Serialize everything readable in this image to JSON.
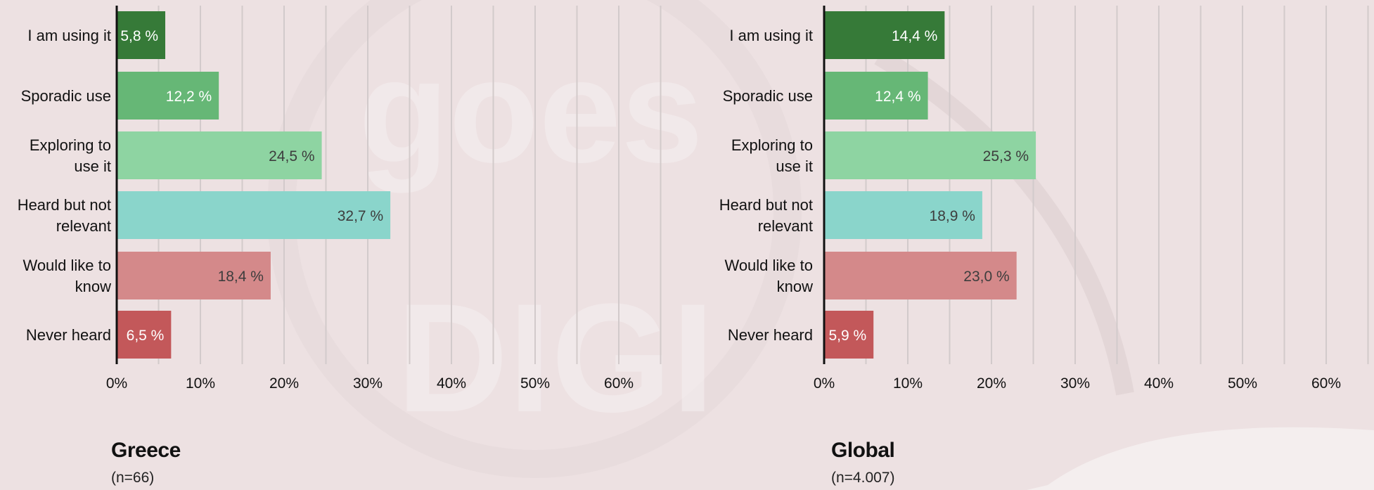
{
  "colors": {
    "background": "#ede1e2",
    "gridline": "#d2cacb",
    "axis": "#111111",
    "watermark": "#f6f1f1",
    "category_colors": [
      "#367a38",
      "#66b776",
      "#8ed4a2",
      "#8ad5cb",
      "#d4898a",
      "#c3585a"
    ],
    "label_colors": [
      "#ffffff",
      "#ffffff",
      "#3d3d3d",
      "#3d3d3d",
      "#3d3d3d",
      "#ffffff"
    ]
  },
  "watermark": {
    "line1": "goes",
    "line2": "DIGI"
  },
  "chart_data": [
    {
      "type": "bar",
      "orientation": "horizontal",
      "title": "Greece",
      "subtitle": "(n=66)",
      "categories": [
        "I am using it",
        "Sporadic use",
        "Exploring to use it",
        "Heard but not relevant",
        "Would like to know",
        "Never heard"
      ],
      "values": [
        5.8,
        12.2,
        24.5,
        32.7,
        18.4,
        6.5
      ],
      "data_labels": [
        "5,8 %",
        "12,2 %",
        "24,5 %",
        "32,7 %",
        "18,4 %",
        "6,5 %"
      ],
      "xlim": [
        0,
        65
      ],
      "xticks": [
        0,
        10,
        20,
        30,
        40,
        50,
        60
      ],
      "xtick_labels": [
        "0%",
        "10%",
        "20%",
        "30%",
        "40%",
        "50%",
        "60%"
      ],
      "grid": true,
      "legend": "none"
    },
    {
      "type": "bar",
      "orientation": "horizontal",
      "title": "Global",
      "subtitle": "(n=4.007)",
      "categories": [
        "I am using it",
        "Sporadic use",
        "Exploring to use it",
        "Heard but not relevant",
        "Would like to know",
        "Never heard"
      ],
      "values": [
        14.4,
        12.4,
        25.3,
        18.9,
        23.0,
        5.9
      ],
      "data_labels": [
        "14,4 %",
        "12,4 %",
        "25,3 %",
        "18,9 %",
        "23,0 %",
        "5,9 %"
      ],
      "xlim": [
        0,
        65
      ],
      "xticks": [
        0,
        10,
        20,
        30,
        40,
        50,
        60
      ],
      "xtick_labels": [
        "0%",
        "10%",
        "20%",
        "30%",
        "40%",
        "50%",
        "60%"
      ],
      "grid": true,
      "legend": "none"
    }
  ]
}
